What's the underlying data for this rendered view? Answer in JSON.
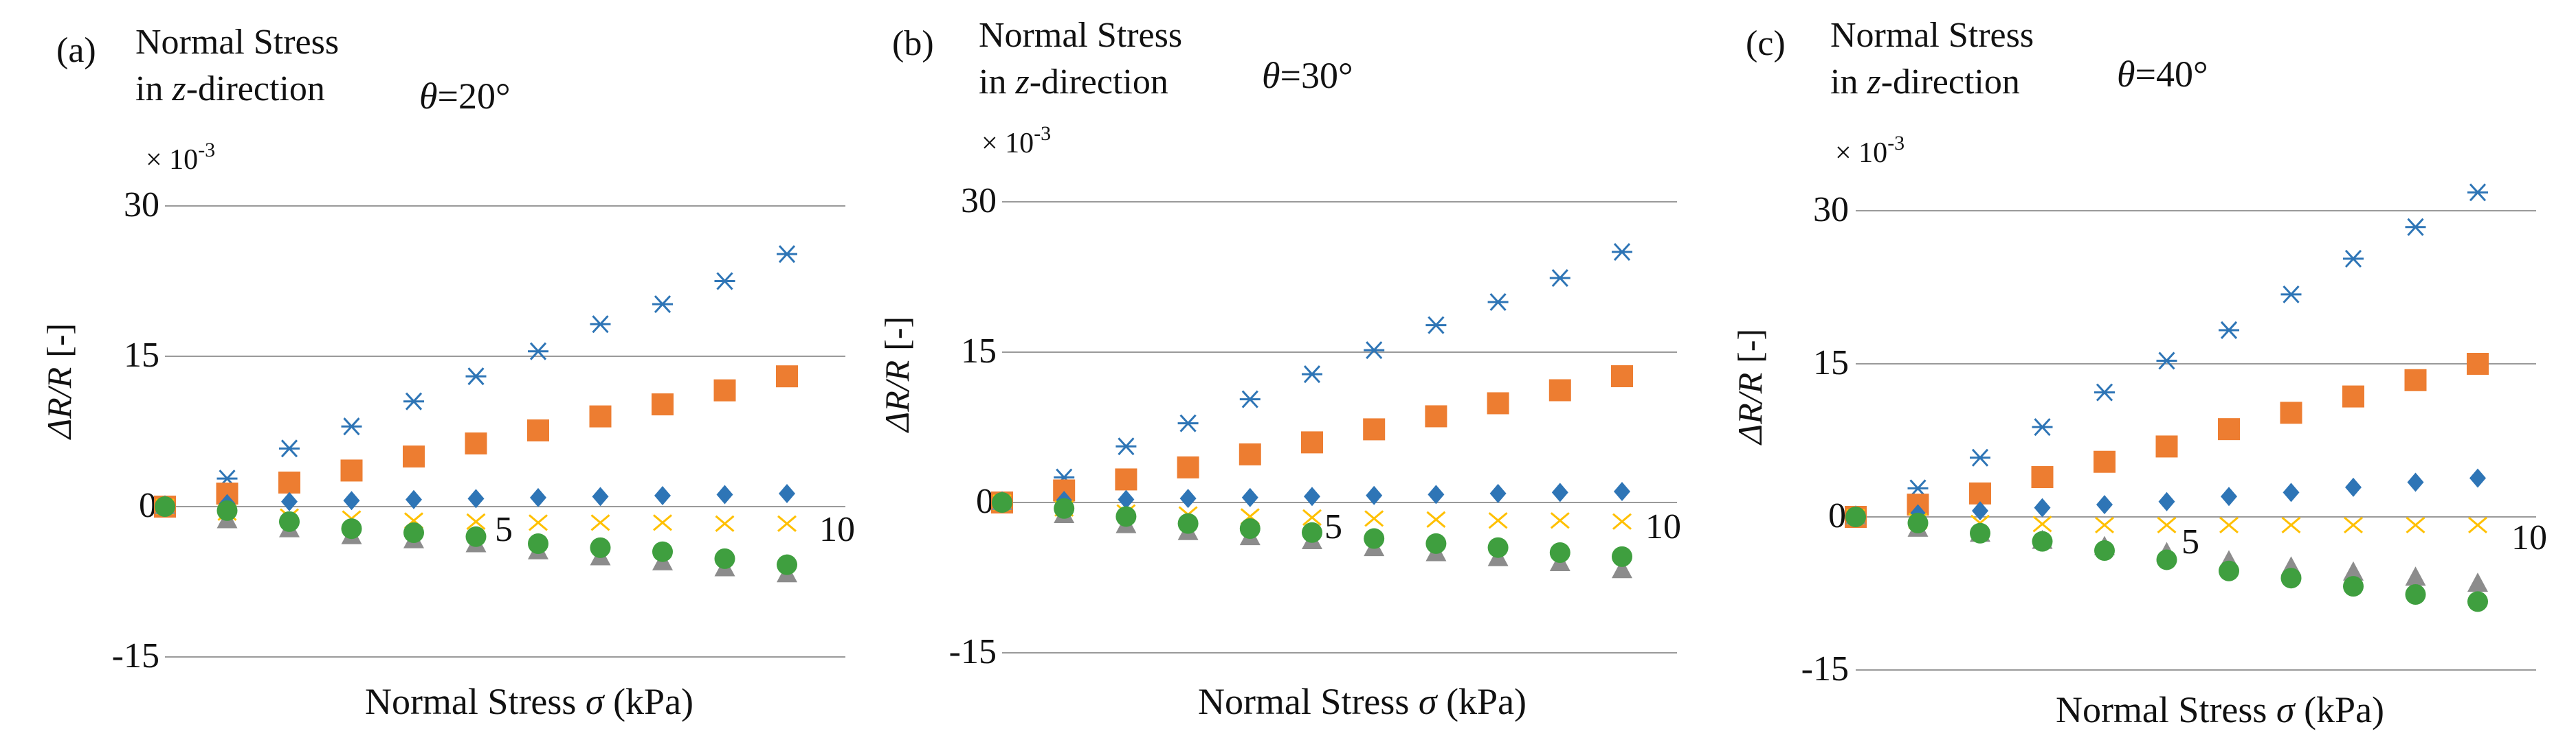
{
  "figure": {
    "scale_label": "× 10",
    "scale_exponent": "-3",
    "axis_symbol": "ΔR/R",
    "axis_unit": "[-]",
    "xlabel_prefix": "Normal Stress ",
    "xlabel_symbol": "σ",
    "xlabel_unit": " (kPa)",
    "title_line1": "Normal Stress",
    "title_line2_prefix": "in ",
    "title_line2_symbol": "z",
    "title_line2_suffix": "-direction",
    "theta_symbol": "θ"
  },
  "chart_data": [
    {
      "type": "scatter",
      "panel": "(a)",
      "angle": "=20°",
      "title": "Normal Stress in z-direction",
      "xlabel": "Normal Stress σ (kPa)",
      "ylabel": "ΔR/R [-]",
      "y_multiplier": "× 10-3",
      "xlim": [
        0,
        10.5
      ],
      "ylim": [
        -15,
        30
      ],
      "yticks": [
        "30",
        "15",
        "0",
        "-15"
      ],
      "xticks": [
        "5",
        "10"
      ],
      "x": [
        0,
        1,
        2,
        3,
        4,
        5,
        6,
        7,
        8,
        9,
        10
      ],
      "series": [
        {
          "name": "blue-asterisk",
          "marker": "asterisk",
          "color": "#2e75b6",
          "values": [
            0,
            2.8,
            5.8,
            8.0,
            10.5,
            13.0,
            15.5,
            18.2,
            20.2,
            22.5,
            25.2
          ]
        },
        {
          "name": "orange-square",
          "marker": "square",
          "color": "#ed7d31",
          "values": [
            0,
            1.3,
            2.4,
            3.6,
            5.0,
            6.3,
            7.6,
            9.0,
            10.2,
            11.6,
            13.0
          ]
        },
        {
          "name": "blue-diamond",
          "marker": "diamond",
          "color": "#2e75b6",
          "values": [
            0,
            0.3,
            0.5,
            0.6,
            0.7,
            0.8,
            0.9,
            1.0,
            1.1,
            1.2,
            1.3
          ]
        },
        {
          "name": "yellow-x",
          "marker": "x",
          "color": "#ffc000",
          "values": [
            0,
            -0.6,
            -1.0,
            -1.2,
            -1.4,
            -1.5,
            -1.6,
            -1.6,
            -1.6,
            -1.7,
            -1.7
          ]
        },
        {
          "name": "gray-triangle",
          "marker": "triangle",
          "color": "#8c8c8c",
          "values": [
            0,
            -1.4,
            -2.3,
            -3.0,
            -3.4,
            -3.8,
            -4.5,
            -5.1,
            -5.6,
            -6.2,
            -6.8
          ]
        },
        {
          "name": "green-circle",
          "marker": "circle",
          "color": "#3f9f3f",
          "values": [
            0,
            -0.4,
            -1.5,
            -2.2,
            -2.6,
            -3.0,
            -3.7,
            -4.1,
            -4.5,
            -5.2,
            -5.8
          ]
        }
      ]
    },
    {
      "type": "scatter",
      "panel": "(b)",
      "angle": "=30°",
      "title": "Normal Stress in z-direction",
      "xlabel": "Normal Stress σ (kPa)",
      "ylabel": "ΔR/R [-]",
      "y_multiplier": "× 10-3",
      "xlim": [
        0,
        10.5
      ],
      "ylim": [
        -15,
        30
      ],
      "yticks": [
        "30",
        "15",
        "0",
        "-15"
      ],
      "xticks": [
        "5",
        "10"
      ],
      "x": [
        0,
        1,
        2,
        3,
        4,
        5,
        6,
        7,
        8,
        9,
        10
      ],
      "series": [
        {
          "name": "blue-asterisk",
          "marker": "asterisk",
          "color": "#2e75b6",
          "values": [
            0,
            2.5,
            5.6,
            7.9,
            10.3,
            12.8,
            15.2,
            17.7,
            20.0,
            22.4,
            25.0
          ]
        },
        {
          "name": "orange-square",
          "marker": "square",
          "color": "#ed7d31",
          "values": [
            0,
            1.2,
            2.3,
            3.5,
            4.8,
            6.0,
            7.3,
            8.6,
            9.9,
            11.2,
            12.6
          ]
        },
        {
          "name": "blue-diamond",
          "marker": "diamond",
          "color": "#2e75b6",
          "values": [
            0,
            0.2,
            0.3,
            0.4,
            0.5,
            0.6,
            0.7,
            0.8,
            0.9,
            1.0,
            1.1
          ]
        },
        {
          "name": "yellow-x",
          "marker": "x",
          "color": "#ffc000",
          "values": [
            0,
            -0.6,
            -1.0,
            -1.2,
            -1.4,
            -1.5,
            -1.6,
            -1.7,
            -1.8,
            -1.8,
            -1.9
          ]
        },
        {
          "name": "gray-triangle",
          "marker": "triangle",
          "color": "#8c8c8c",
          "values": [
            0,
            -1.3,
            -2.3,
            -3.0,
            -3.5,
            -3.9,
            -4.6,
            -5.1,
            -5.6,
            -6.1,
            -6.8
          ]
        },
        {
          "name": "green-circle",
          "marker": "circle",
          "color": "#3f9f3f",
          "values": [
            0,
            -0.6,
            -1.4,
            -2.1,
            -2.6,
            -3.0,
            -3.6,
            -4.1,
            -4.5,
            -5.0,
            -5.4
          ]
        }
      ]
    },
    {
      "type": "scatter",
      "panel": "(c)",
      "angle": "=40°",
      "title": "Normal Stress in z-direction",
      "xlabel": "Normal Stress σ (kPa)",
      "ylabel": "ΔR/R [-]",
      "y_multiplier": "× 10-3",
      "xlim": [
        0,
        10.5
      ],
      "ylim": [
        -15,
        30
      ],
      "yticks": [
        "30",
        "15",
        "0",
        "-15"
      ],
      "xticks": [
        "5",
        "10"
      ],
      "x": [
        0,
        1,
        2,
        3,
        4,
        5,
        6,
        7,
        8,
        9,
        10
      ],
      "series": [
        {
          "name": "blue-asterisk",
          "marker": "asterisk",
          "color": "#2e75b6",
          "values": [
            0,
            2.8,
            5.8,
            8.8,
            12.2,
            15.3,
            18.3,
            21.8,
            25.3,
            28.4,
            31.8
          ]
        },
        {
          "name": "orange-square",
          "marker": "square",
          "color": "#ed7d31",
          "values": [
            0,
            1.2,
            2.3,
            3.9,
            5.4,
            6.9,
            8.6,
            10.2,
            11.8,
            13.4,
            15.0
          ]
        },
        {
          "name": "blue-diamond",
          "marker": "diamond",
          "color": "#2e75b6",
          "values": [
            0,
            0.3,
            0.6,
            0.9,
            1.2,
            1.5,
            2.0,
            2.4,
            2.9,
            3.4,
            3.8
          ]
        },
        {
          "name": "yellow-x",
          "marker": "x",
          "color": "#ffc000",
          "values": [
            0,
            -0.4,
            -0.6,
            -0.7,
            -0.8,
            -0.8,
            -0.8,
            -0.8,
            -0.8,
            -0.8,
            -0.8
          ]
        },
        {
          "name": "gray-triangle",
          "marker": "triangle",
          "color": "#8c8c8c",
          "values": [
            0,
            -1.2,
            -1.7,
            -2.4,
            -3.0,
            -3.6,
            -4.4,
            -5.0,
            -5.5,
            -6.0,
            -6.6
          ]
        },
        {
          "name": "green-circle",
          "marker": "circle",
          "color": "#3f9f3f",
          "values": [
            0,
            -0.6,
            -1.6,
            -2.4,
            -3.3,
            -4.2,
            -5.3,
            -6.0,
            -6.8,
            -7.6,
            -8.3
          ]
        }
      ]
    }
  ]
}
